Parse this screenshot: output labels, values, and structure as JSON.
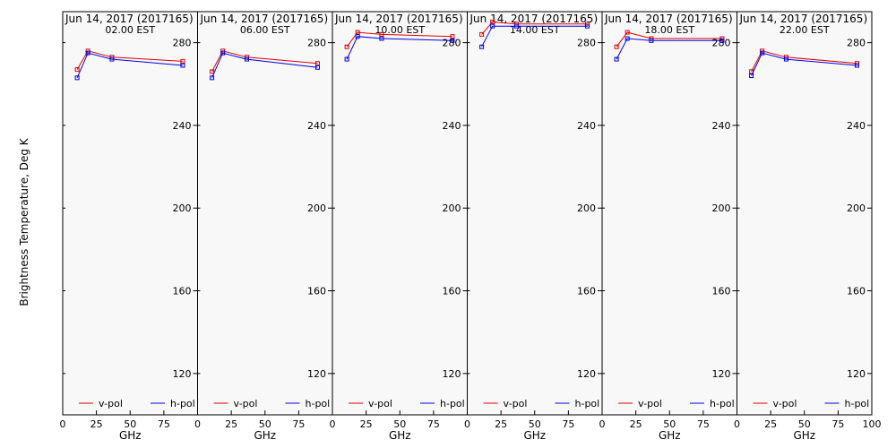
{
  "figure": {
    "ylabel": "Brightness Temperature, Deg K",
    "xlabel": "GHz",
    "date_label": "Jun 14, 2017 (2017165)"
  },
  "colors": {
    "v_pol": "#e00000",
    "h_pol": "#0000e0",
    "panel_bg": "#f8f8f8"
  },
  "chart_data": [
    {
      "type": "line",
      "title": "Jun 14, 2017 (2017165)",
      "subtitle": "02.00 EST",
      "xlabel": "GHz",
      "ylabel": "Brightness Temperature, Deg K",
      "xlim": [
        0,
        100
      ],
      "ylim": [
        100,
        295
      ],
      "xticks": [
        0,
        25,
        50,
        75,
        100
      ],
      "yticks": [
        120,
        160,
        200,
        240,
        280
      ],
      "legend_position": "bottom",
      "x": [
        10.7,
        18.7,
        36.5,
        89
      ],
      "series": [
        {
          "name": "v-pol",
          "values": [
            267,
            276,
            273,
            271
          ]
        },
        {
          "name": "h-pol",
          "values": [
            263,
            275,
            272,
            269
          ]
        }
      ]
    },
    {
      "type": "line",
      "title": "Jun 14, 2017 (2017165)",
      "subtitle": "06.00 EST",
      "xlabel": "GHz",
      "ylabel": "Brightness Temperature, Deg K",
      "xlim": [
        0,
        100
      ],
      "ylim": [
        100,
        295
      ],
      "xticks": [
        0,
        25,
        50,
        75,
        100
      ],
      "yticks": [
        120,
        160,
        200,
        240,
        280
      ],
      "legend_position": "bottom",
      "x": [
        10.7,
        18.7,
        36.5,
        89
      ],
      "series": [
        {
          "name": "v-pol",
          "values": [
            266,
            276,
            273,
            270
          ]
        },
        {
          "name": "h-pol",
          "values": [
            263,
            275,
            272,
            268
          ]
        }
      ]
    },
    {
      "type": "line",
      "title": "Jun 14, 2017 (2017165)",
      "subtitle": "10.00 EST",
      "xlabel": "GHz",
      "ylabel": "Brightness Temperature, Deg K",
      "xlim": [
        0,
        100
      ],
      "ylim": [
        100,
        295
      ],
      "xticks": [
        0,
        25,
        50,
        75,
        100
      ],
      "yticks": [
        120,
        160,
        200,
        240,
        280
      ],
      "legend_position": "bottom",
      "x": [
        10.7,
        18.7,
        36.5,
        89
      ],
      "series": [
        {
          "name": "v-pol",
          "values": [
            278,
            285,
            284,
            283
          ]
        },
        {
          "name": "h-pol",
          "values": [
            272,
            283,
            282,
            281
          ]
        }
      ]
    },
    {
      "type": "line",
      "title": "Jun 14, 2017 (2017165)",
      "subtitle": "14.00 EST",
      "xlabel": "GHz",
      "ylabel": "Brightness Temperature, Deg K",
      "xlim": [
        0,
        100
      ],
      "ylim": [
        100,
        295
      ],
      "xticks": [
        0,
        25,
        50,
        75,
        100
      ],
      "yticks": [
        120,
        160,
        200,
        240,
        280
      ],
      "legend_position": "bottom",
      "x": [
        10.7,
        18.7,
        36.5,
        89
      ],
      "series": [
        {
          "name": "v-pol",
          "values": [
            284,
            290,
            289,
            289
          ]
        },
        {
          "name": "h-pol",
          "values": [
            278,
            288,
            288,
            288
          ]
        }
      ]
    },
    {
      "type": "line",
      "title": "Jun 14, 2017 (2017165)",
      "subtitle": "18.00 EST",
      "xlabel": "GHz",
      "ylabel": "Brightness Temperature, Deg K",
      "xlim": [
        0,
        100
      ],
      "ylim": [
        100,
        295
      ],
      "xticks": [
        0,
        25,
        50,
        75,
        100
      ],
      "yticks": [
        120,
        160,
        200,
        240,
        280
      ],
      "legend_position": "bottom",
      "x": [
        10.7,
        18.7,
        36.5,
        89
      ],
      "series": [
        {
          "name": "v-pol",
          "values": [
            278,
            285,
            282,
            282
          ]
        },
        {
          "name": "h-pol",
          "values": [
            272,
            282,
            281,
            281
          ]
        }
      ]
    },
    {
      "type": "line",
      "title": "Jun 14, 2017 (2017165)",
      "subtitle": "22.00 EST",
      "xlabel": "GHz",
      "ylabel": "Brightness Temperature, Deg K",
      "xlim": [
        0,
        100
      ],
      "ylim": [
        100,
        295
      ],
      "xticks": [
        0,
        25,
        50,
        75,
        100
      ],
      "yticks": [
        120,
        160,
        200,
        240,
        280
      ],
      "legend_position": "bottom",
      "x": [
        10.7,
        18.7,
        36.5,
        89
      ],
      "series": [
        {
          "name": "v-pol",
          "values": [
            266,
            276,
            273,
            270
          ]
        },
        {
          "name": "h-pol",
          "values": [
            264,
            275,
            272,
            269
          ]
        }
      ]
    }
  ]
}
